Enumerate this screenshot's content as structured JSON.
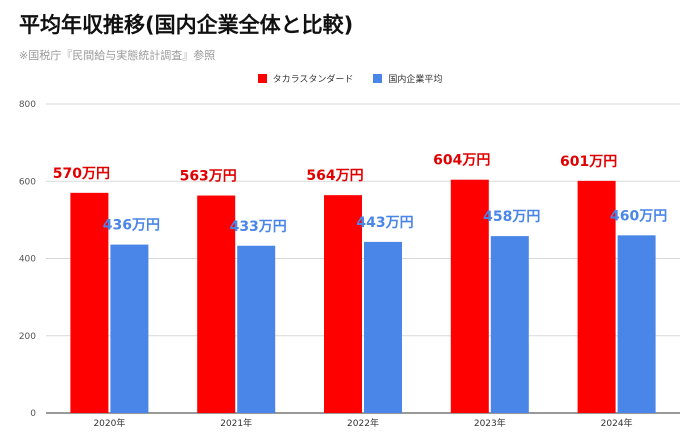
{
  "title": "平均年収推移(国内企業全体と比較)",
  "subtitle": "※国税庁『民間給与実態統計調査』参照",
  "chart_data": {
    "type": "bar",
    "categories": [
      "2020年",
      "2021年",
      "2022年",
      "2023年",
      "2024年"
    ],
    "series": [
      {
        "name": "タカラスタンダード",
        "values": [
          570,
          563,
          564,
          604,
          601
        ],
        "color": "#ff0000",
        "labels": [
          "570万円",
          "563万円",
          "564万円",
          "604万円",
          "601万円"
        ],
        "label_color": "#e00000"
      },
      {
        "name": "国内企業平均",
        "values": [
          436,
          433,
          443,
          458,
          460
        ],
        "color": "#4a86e8",
        "labels": [
          "436万円",
          "433万円",
          "443万円",
          "458万円",
          "460万円"
        ],
        "label_color": "#4a86e8"
      }
    ],
    "yticks": [
      0,
      200,
      400,
      600,
      800
    ],
    "ylim": [
      0,
      800
    ],
    "grid": true,
    "legend_position": "top-center"
  }
}
